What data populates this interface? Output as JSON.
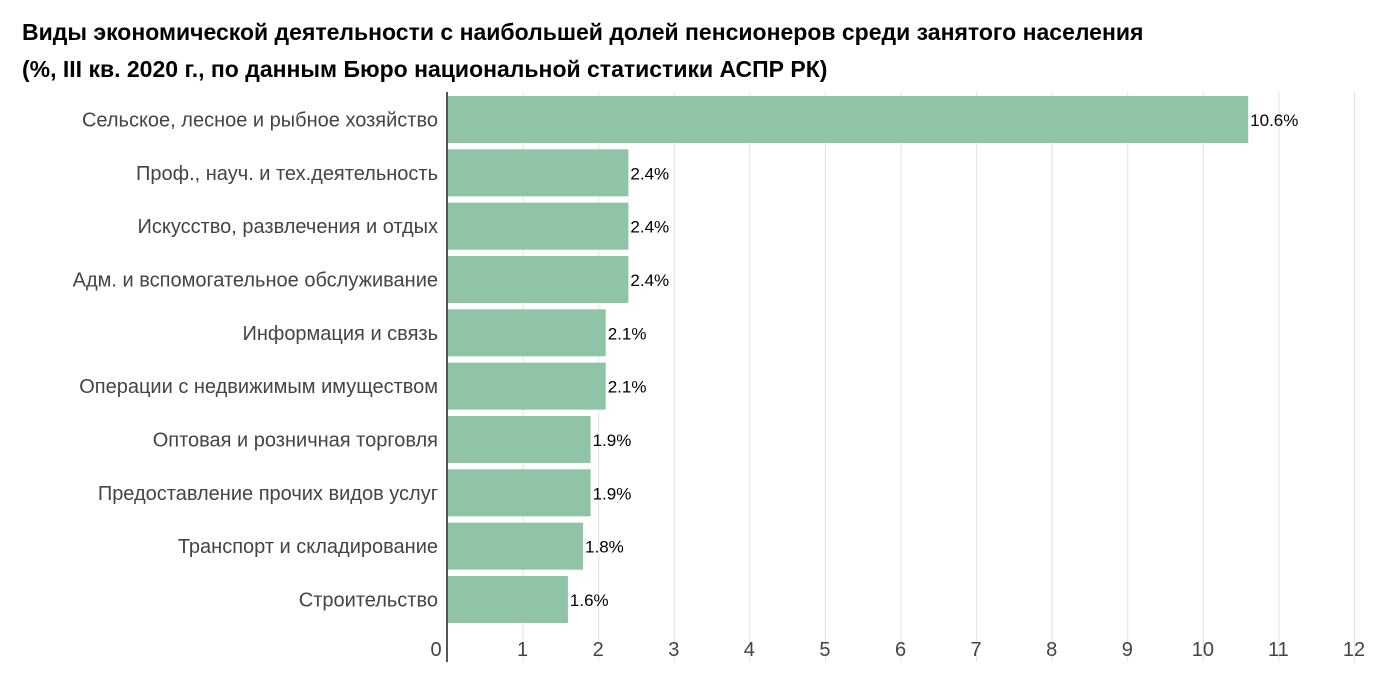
{
  "chart_data": {
    "type": "bar",
    "orientation": "horizontal",
    "title": "Виды экономической деятельности с наибольшей долей пенсионеров среди занятого населения",
    "subtitle": "(%, III кв. 2020 г., по данным Бюро национальной статистики АСПР РК)",
    "categories": [
      "Сельское, лесное и рыбное хозяйство",
      "Проф., науч. и тех.деятельность",
      "Искусство, развлечения и отдых",
      "Адм. и вспомогательное обслуживание",
      "Информация и связь",
      "Операции с недвижимым имуществом",
      "Оптовая и розничная торговля",
      "Предоставление прочих видов услуг",
      "Транспорт и складирование",
      "Строительство"
    ],
    "values": [
      10.6,
      2.4,
      2.4,
      2.4,
      2.1,
      2.1,
      1.9,
      1.9,
      1.8,
      1.6
    ],
    "data_labels": [
      "10.6%",
      "2.4%",
      "2.4%",
      "2.4%",
      "2.1%",
      "2.1%",
      "1.9%",
      "1.9%",
      "1.8%",
      "1.6%"
    ],
    "xlim": [
      0,
      12
    ],
    "xticks": [
      "0",
      "1",
      "2",
      "3",
      "4",
      "5",
      "6",
      "7",
      "8",
      "9",
      "10",
      "11",
      "12"
    ],
    "xlabel": "",
    "ylabel": "",
    "grid": true,
    "legend": "none",
    "bar_color": "#8fc4a6",
    "grid_color": "#e3e3e3",
    "axis_color": "#555555"
  }
}
